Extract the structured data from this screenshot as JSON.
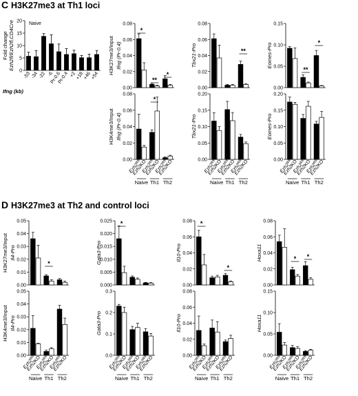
{
  "sections": [
    {
      "letter": "C",
      "title": "H3K27me3 at Th1 loci"
    },
    {
      "letter": "D",
      "title": "H3K27me3 at Th2 and control loci"
    }
  ],
  "chart_data": [
    {
      "id": "C-naive",
      "type": "bar",
      "panel_label": "Naive",
      "ylabel": "Fold change",
      "ylabel2": "Ezh2fl/Ezh2fl,CD4Cre",
      "xlabel": "Ifng (kb)",
      "categories": [
        "-53",
        "-34",
        "-22",
        "-6",
        "Pr-0.6",
        "Pr-0.4",
        "+2",
        "+18",
        "+46",
        "+54"
      ],
      "values": [
        5.8,
        5.6,
        13.8,
        10.8,
        7.6,
        6.5,
        6.8,
        5.2,
        5.2,
        6.5
      ],
      "errors": [
        1.5,
        2.3,
        1.0,
        3.5,
        3.0,
        2.3,
        1.3,
        0.8,
        1.3,
        1.5
      ],
      "ylim": [
        0,
        20
      ],
      "yticks": [
        "0",
        "5",
        "10",
        "15",
        "20"
      ]
    },
    {
      "id": "C-k27-ifng",
      "type": "bar",
      "ylabel": "H3K27me3/Input",
      "ylabel2": "Ifng (Pr-0.4)",
      "ylim": [
        0,
        0.08
      ],
      "yticks": [
        "0.00",
        "0.02",
        "0.04",
        "0.06",
        "0.08"
      ],
      "values": [
        0.061,
        0.022,
        0.004,
        0.002,
        0.011,
        0.003
      ],
      "errors": [
        0.006,
        0.009,
        0.001,
        0.001,
        0.004,
        0.001
      ]
    },
    {
      "id": "C-k27-tbx",
      "type": "bar",
      "ylabel": "Tbx21-Pro",
      "ylim": [
        0,
        0.08
      ],
      "yticks": [
        "0.00",
        "0.02",
        "0.04",
        "0.06",
        "0.08"
      ],
      "values": [
        0.061,
        0.037,
        0.003,
        0.003,
        0.029,
        0.004
      ],
      "errors": [
        0.006,
        0.016,
        0.001,
        0.001,
        0.004,
        0.001
      ]
    },
    {
      "id": "C-k27-eomes",
      "type": "bar",
      "ylabel": "Eomes-Pro",
      "ylim": [
        0,
        0.15
      ],
      "yticks": [
        "0.00",
        "0.05",
        "0.10",
        "0.15"
      ],
      "values": [
        0.092,
        0.068,
        0.024,
        0.011,
        0.075,
        0.004
      ],
      "errors": [
        0.004,
        0.025,
        0.006,
        0.002,
        0.012,
        0.001
      ]
    },
    {
      "id": "C-k4-ifng",
      "type": "bar",
      "ylabel": "H3K4me3/Input",
      "ylabel2": "Ifng (Pr-0.4)",
      "ylim": [
        0,
        0.08
      ],
      "yticks": [
        "0.00",
        "0.02",
        "0.04",
        "0.06",
        "0.08"
      ],
      "values": [
        0.037,
        0.015,
        0.033,
        0.059,
        0.002,
        0.004
      ],
      "errors": [
        0.018,
        0.002,
        0.003,
        0.017,
        0.001,
        0.001
      ]
    },
    {
      "id": "C-k4-tbx",
      "type": "bar",
      "ylabel": "Tbx21-Pro",
      "ylim": [
        0,
        0.2
      ],
      "yticks": [
        "0.00",
        "0.05",
        "0.10",
        "0.15",
        "0.20"
      ],
      "values": [
        0.117,
        0.088,
        0.152,
        0.118,
        0.068,
        0.048
      ],
      "errors": [
        0.025,
        0.012,
        0.025,
        0.025,
        0.008,
        0.005
      ]
    },
    {
      "id": "C-k4-eomes",
      "type": "bar",
      "ylabel": "Eomes-Pro",
      "ylim": [
        0,
        0.2
      ],
      "yticks": [
        "0.00",
        "0.05",
        "0.10",
        "0.15",
        "0.20"
      ],
      "values": [
        0.175,
        0.168,
        0.125,
        0.162,
        0.108,
        0.128
      ],
      "errors": [
        0.015,
        0.006,
        0.012,
        0.015,
        0.008,
        0.018
      ]
    },
    {
      "id": "D-k27-il4",
      "type": "bar",
      "ylabel": "H3K27me3/Input",
      "ylabel2": "Il4-Pro",
      "ylim": [
        0,
        0.05
      ],
      "yticks": [
        "0.00",
        "0.01",
        "0.02",
        "0.03",
        "0.04",
        "0.05"
      ],
      "values": [
        0.036,
        0.021,
        0.007,
        0.003,
        0.004,
        0.002
      ],
      "errors": [
        0.005,
        0.01,
        0.001,
        0.001,
        0.001,
        0.001
      ]
    },
    {
      "id": "D-k27-gata3",
      "type": "bar",
      "ylabel": "Gata3-Pro",
      "ylim": [
        0,
        0.025
      ],
      "yticks": [
        "0.000",
        "0.005",
        "0.010",
        "0.015",
        "0.020",
        "0.025"
      ],
      "values": [
        0.018,
        0.0048,
        0.003,
        0.0022,
        0.0008,
        0.0007
      ],
      "errors": [
        0.005,
        0.0025,
        0.0005,
        0.0005,
        0.0002,
        0.0002
      ]
    },
    {
      "id": "D-k27-il10",
      "type": "bar",
      "ylabel": "Il10-Pro",
      "ylim": [
        0,
        0.08
      ],
      "yticks": [
        "0.00",
        "0.02",
        "0.04",
        "0.06",
        "0.08"
      ],
      "values": [
        0.06,
        0.025,
        0.009,
        0.01,
        0.012,
        0.004
      ],
      "errors": [
        0.008,
        0.013,
        0.002,
        0.002,
        0.002,
        0.001
      ]
    },
    {
      "id": "D-k27-hoxa11",
      "type": "bar",
      "ylabel": "Hoxa11",
      "ylim": [
        0,
        0.08
      ],
      "yticks": [
        "0.00",
        "0.02",
        "0.04",
        "0.06",
        "0.08"
      ],
      "values": [
        0.054,
        0.047,
        0.019,
        0.011,
        0.024,
        0.007
      ],
      "errors": [
        0.008,
        0.023,
        0.003,
        0.002,
        0.005,
        0.002
      ]
    },
    {
      "id": "D-k4-il4",
      "type": "bar",
      "ylabel": "H3K4me3/Input",
      "ylabel2": "Il4-Pro",
      "ylim": [
        0,
        0.05
      ],
      "yticks": [
        "0.00",
        "0.01",
        "0.02",
        "0.03",
        "0.04",
        "0.05"
      ],
      "values": [
        0.021,
        0.009,
        0.003,
        0.005,
        0.036,
        0.024
      ],
      "errors": [
        0.01,
        0.0005,
        0.001,
        0.001,
        0.003,
        0.005
      ]
    },
    {
      "id": "D-k4-gata3",
      "type": "bar",
      "ylabel": "Gata3-Pro",
      "ylim": [
        0,
        0.3
      ],
      "yticks": [
        "0.0",
        "0.1",
        "0.2",
        "0.3"
      ],
      "values": [
        0.23,
        0.2,
        0.12,
        0.13,
        0.11,
        0.09
      ],
      "errors": [
        0.008,
        0.025,
        0.015,
        0.02,
        0.015,
        0.012
      ]
    },
    {
      "id": "D-k4-il10",
      "type": "bar",
      "ylabel": "Il10-Pro",
      "ylim": [
        0,
        0.08
      ],
      "yticks": [
        "0.00",
        "0.02",
        "0.04",
        "0.06",
        "0.08"
      ],
      "values": [
        0.031,
        0.012,
        0.034,
        0.029,
        0.017,
        0.021
      ],
      "errors": [
        0.018,
        0.002,
        0.01,
        0.013,
        0.002,
        0.004
      ]
    },
    {
      "id": "D-k4-hoxa11",
      "type": "bar",
      "ylabel": "Hoxa11",
      "ylim": [
        0,
        0.15
      ],
      "yticks": [
        "0.00",
        "0.05",
        "0.10",
        "0.15"
      ],
      "values": [
        0.054,
        0.024,
        0.018,
        0.016,
        0.009,
        0.012
      ],
      "errors": [
        0.02,
        0.006,
        0.005,
        0.004,
        0.002,
        0.002
      ]
    }
  ],
  "bar_labels": [
    "Ezh2fl/fl",
    "Ezh2KO",
    "Ezh2fl/fl",
    "Ezh2KO",
    "Ezh2fl/fl",
    "Ezh2KO"
  ],
  "groups": [
    "Naive",
    "Th1",
    "Th2"
  ],
  "significance_mark": "*",
  "significance_double": "**",
  "colors": {
    "wt": "#000000",
    "ko": "#ffffff"
  }
}
